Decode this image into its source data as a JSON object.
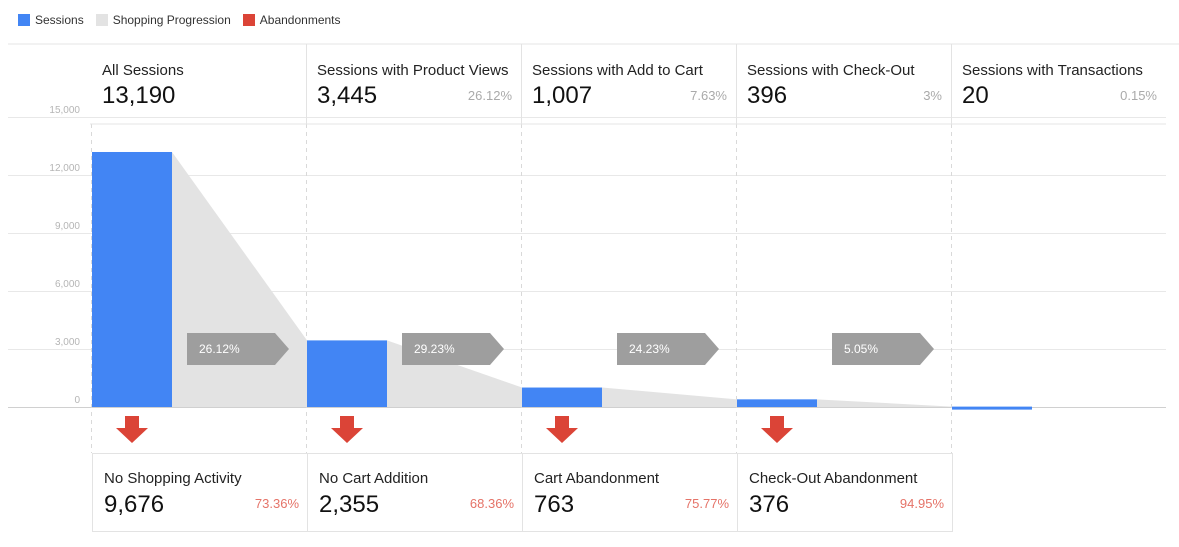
{
  "legend": [
    {
      "label": "Sessions",
      "color": "#4285f4"
    },
    {
      "label": "Shopping Progression",
      "color": "#e3e3e3"
    },
    {
      "label": "Abandonments",
      "color": "#db4437"
    }
  ],
  "chart_data": {
    "type": "bar",
    "ylim": [
      0,
      15000
    ],
    "yticks": [
      0,
      3000,
      6000,
      9000,
      12000,
      15000
    ],
    "ytick_labels": [
      "0",
      "3,000",
      "6,000",
      "9,000",
      "12,000",
      "15,000"
    ],
    "grid": true,
    "legend_position": "top-left",
    "stages": [
      {
        "name": "All Sessions",
        "value": 13190,
        "value_label": "13,190",
        "pct_label": ""
      },
      {
        "name": "Sessions with Product Views",
        "value": 3445,
        "value_label": "3,445",
        "pct_label": "26.12%"
      },
      {
        "name": "Sessions with Add to Cart",
        "value": 1007,
        "value_label": "1,007",
        "pct_label": "7.63%"
      },
      {
        "name": "Sessions with Check-Out",
        "value": 396,
        "value_label": "396",
        "pct_label": "3%"
      },
      {
        "name": "Sessions with Transactions",
        "value": 20,
        "value_label": "20",
        "pct_label": "0.15%"
      }
    ],
    "conversion_labels": [
      "26.12%",
      "29.23%",
      "24.23%",
      "5.05%"
    ],
    "abandonments": [
      {
        "name": "No Shopping Activity",
        "value": 9676,
        "value_label": "9,676",
        "pct_label": "73.36%"
      },
      {
        "name": "No Cart Addition",
        "value": 2355,
        "value_label": "2,355",
        "pct_label": "68.36%"
      },
      {
        "name": "Cart Abandonment",
        "value": 763,
        "value_label": "763",
        "pct_label": "75.77%"
      },
      {
        "name": "Check-Out Abandonment",
        "value": 376,
        "value_label": "376",
        "pct_label": "94.95%"
      }
    ]
  }
}
